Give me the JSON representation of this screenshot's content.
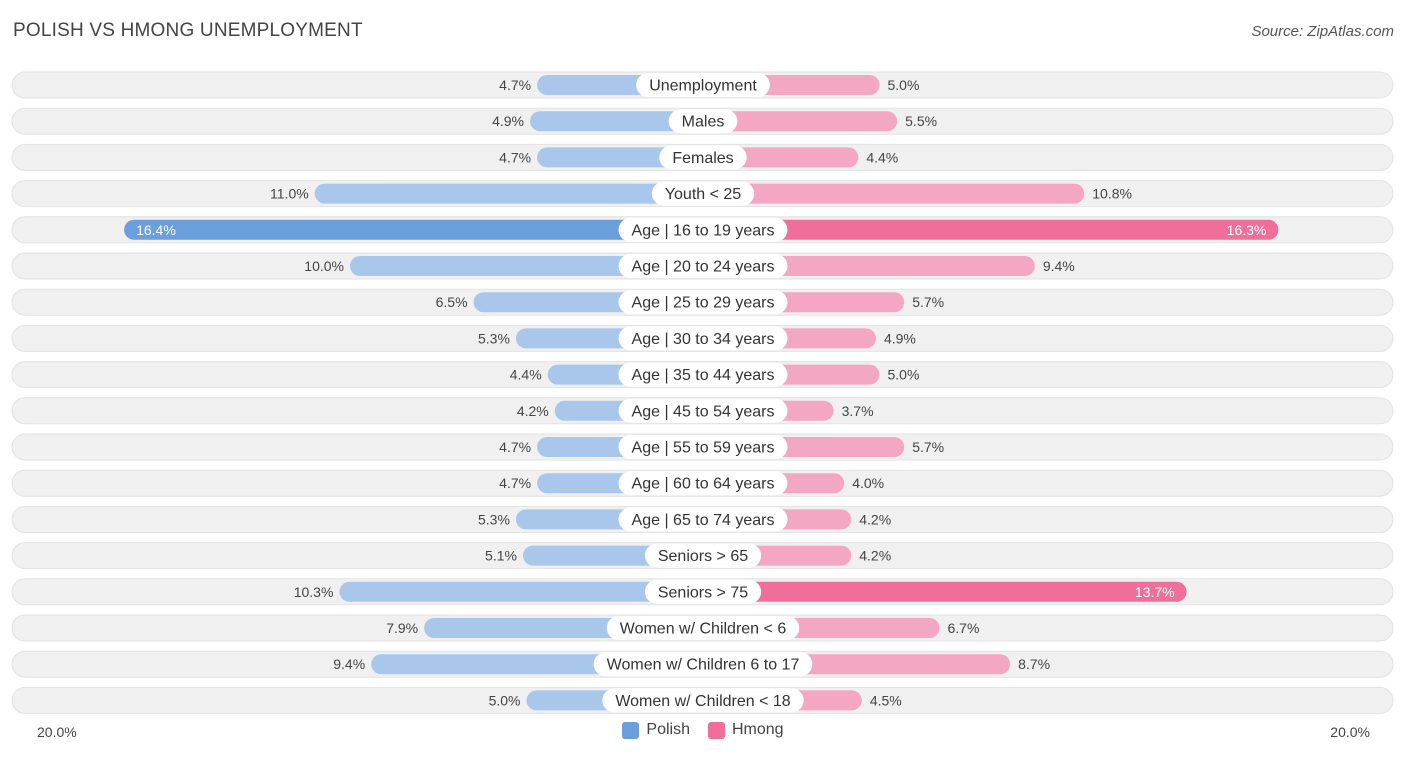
{
  "header": {
    "title": "POLISH VS HMONG UNEMPLOYMENT",
    "source": "Source: ZipAtlas.com"
  },
  "colors": {
    "polish_light": "#a8c7ea",
    "polish_strong": "#6a9fdc",
    "hmong_light": "#f4a7c2",
    "hmong_strong": "#ef6f9a",
    "row_bg": "#f0f0f0"
  },
  "chart_data": {
    "type": "bar",
    "orientation": "diverging-horizontal",
    "title": "POLISH VS HMONG UNEMPLOYMENT",
    "categories": [
      "Unemployment",
      "Males",
      "Females",
      "Youth < 25",
      "Age | 16 to 19 years",
      "Age | 20 to 24 years",
      "Age | 25 to 29 years",
      "Age | 30 to 34 years",
      "Age | 35 to 44 years",
      "Age | 45 to 54 years",
      "Age | 55 to 59 years",
      "Age | 60 to 64 years",
      "Age | 65 to 74 years",
      "Seniors > 65",
      "Seniors > 75",
      "Women w/ Children < 6",
      "Women w/ Children 6 to 17",
      "Women w/ Children < 18"
    ],
    "series": [
      {
        "name": "Polish",
        "values": [
          4.7,
          4.9,
          4.7,
          11.0,
          16.4,
          10.0,
          6.5,
          5.3,
          4.4,
          4.2,
          4.7,
          4.7,
          5.3,
          5.1,
          10.3,
          7.9,
          9.4,
          5.0
        ],
        "labels": [
          "4.7%",
          "4.9%",
          "4.7%",
          "11.0%",
          "16.4%",
          "10.0%",
          "6.5%",
          "5.3%",
          "4.4%",
          "4.2%",
          "4.7%",
          "4.7%",
          "5.3%",
          "5.1%",
          "10.3%",
          "7.9%",
          "9.4%",
          "5.0%"
        ]
      },
      {
        "name": "Hmong",
        "values": [
          5.0,
          5.5,
          4.4,
          10.8,
          16.3,
          9.4,
          5.7,
          4.9,
          5.0,
          3.7,
          5.7,
          4.0,
          4.2,
          4.2,
          13.7,
          6.7,
          8.7,
          4.5
        ],
        "labels": [
          "5.0%",
          "5.5%",
          "4.4%",
          "10.8%",
          "16.3%",
          "9.4%",
          "5.7%",
          "4.9%",
          "5.0%",
          "3.7%",
          "5.7%",
          "4.0%",
          "4.2%",
          "4.2%",
          "13.7%",
          "6.7%",
          "8.7%",
          "4.5%"
        ]
      }
    ],
    "axis_max": 20.0,
    "axis_left_label": "20.0%",
    "axis_right_label": "20.0%",
    "legend_placement": "bottom-center"
  }
}
